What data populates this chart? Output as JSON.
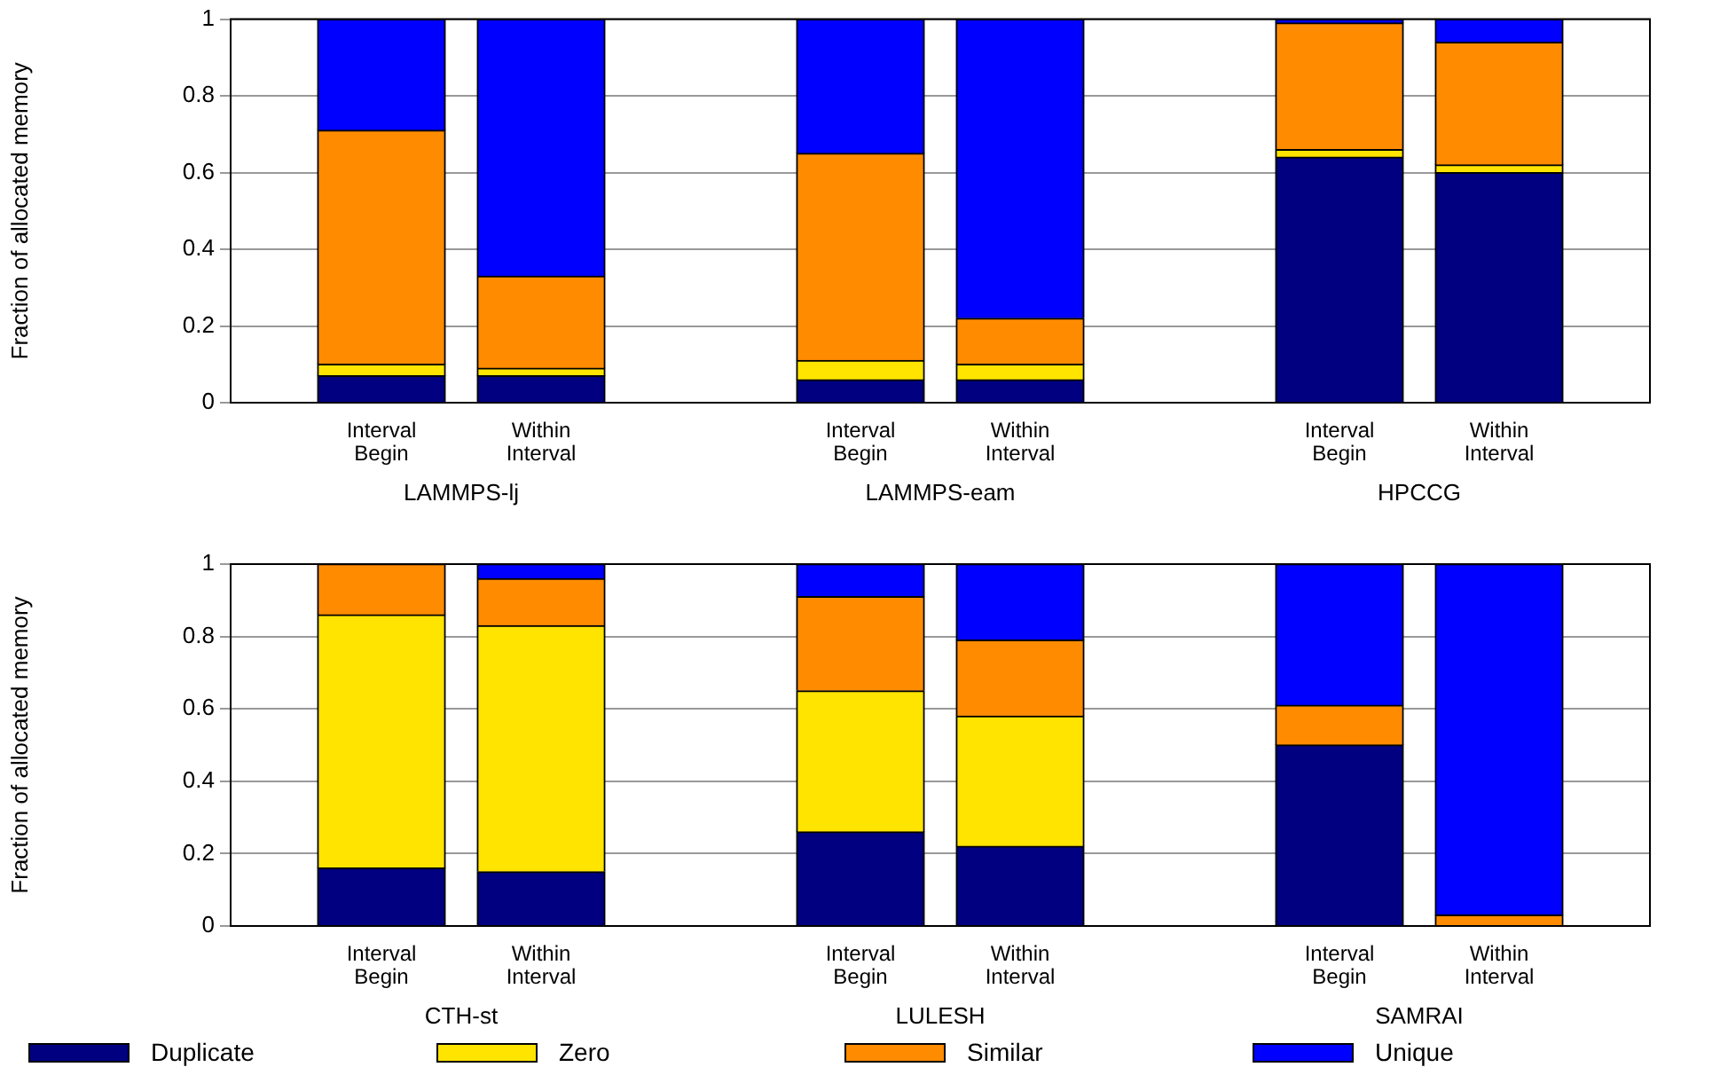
{
  "chart_data": [
    {
      "type": "bar",
      "stacked": true,
      "ylabel": "Fraction of allocated memory",
      "categories": [
        "Interval Begin",
        "Within Interval",
        "Interval Begin",
        "Within Interval",
        "Interval Begin",
        "Within Interval"
      ],
      "annotations": [
        "LAMMPS-lj",
        "LAMMPS-eam",
        "HPCCG"
      ],
      "ylim": [
        0,
        1
      ],
      "yticks": [
        0,
        0.2,
        0.4,
        0.6,
        0.8,
        1
      ],
      "grid": "y",
      "legend": false,
      "series": [
        {
          "color": "#000080",
          "values": [
            0.07,
            0.07,
            0.06,
            0.06,
            0.64,
            0.6
          ]
        },
        {
          "color": "#ffe400",
          "values": [
            0.03,
            0.02,
            0.05,
            0.04,
            0.02,
            0.02
          ]
        },
        {
          "color": "#ff8c00",
          "values": [
            0.61,
            0.24,
            0.54,
            0.12,
            0.33,
            0.32
          ]
        },
        {
          "color": "#0000ff",
          "values": [
            0.29,
            0.67,
            0.35,
            0.78,
            0.01,
            0.06
          ]
        }
      ]
    },
    {
      "type": "bar",
      "stacked": true,
      "ylabel": "Fraction of allocated memory",
      "categories": [
        "Interval Begin",
        "Within Interval",
        "Interval Begin",
        "Within Interval",
        "Interval Begin",
        "Within Interval"
      ],
      "annotations": [
        "CTH-st",
        "LULESH",
        "SAMRAI"
      ],
      "ylim": [
        0,
        1
      ],
      "yticks": [
        0,
        0.2,
        0.4,
        0.6,
        0.8,
        1
      ],
      "grid": "y",
      "legend": "bottom",
      "series": [
        {
          "name": "Duplicate",
          "color": "#000080",
          "values": [
            0.16,
            0.15,
            0.26,
            0.22,
            0.5,
            0
          ]
        },
        {
          "name": "Zero",
          "color": "#ffe400",
          "values": [
            0.7,
            0.68,
            0.39,
            0.36,
            0,
            0
          ]
        },
        {
          "name": "Similar",
          "color": "#ff8c00",
          "values": [
            0.14,
            0.13,
            0.26,
            0.21,
            0.11,
            0.03
          ]
        },
        {
          "name": "Unique",
          "color": "#0000ff",
          "values": [
            0,
            0.04,
            0.09,
            0.21,
            0.39,
            0.97
          ]
        }
      ]
    }
  ]
}
